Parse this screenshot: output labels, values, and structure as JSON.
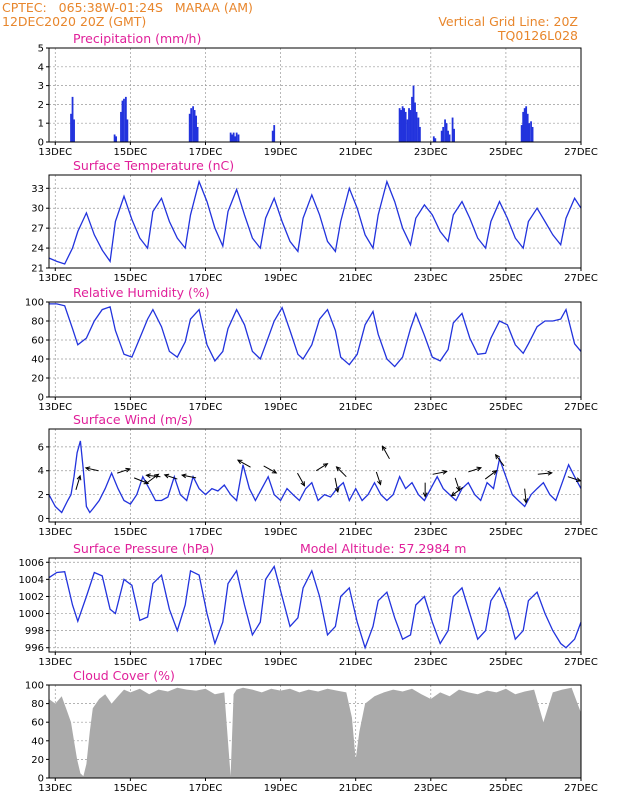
{
  "header": {
    "station": "CPTEC:   065:38W-01:24S   MARAA (AM)",
    "datetime": "12DEC2020 20Z (GMT)",
    "grid_note": "Vertical Grid Line: 20Z",
    "model": "TQ0126L028"
  },
  "colors": {
    "header": "#e8862c",
    "title": "#e0209a",
    "line": "#2233dd",
    "bar": "#2233dd",
    "cloud": "#aaaaaa",
    "arrow": "#000000"
  },
  "x_ticks": [
    "13DEC",
    "15DEC",
    "17DEC",
    "19DEC",
    "21DEC",
    "23DEC",
    "25DEC",
    "27DEC"
  ],
  "chart_data": [
    {
      "type": "bar",
      "title": "Precipitation (mm/h)",
      "xlim": [
        12.833,
        27.0
      ],
      "ylim": [
        0,
        5
      ],
      "yticks": [
        0,
        1,
        2,
        3,
        4,
        5
      ],
      "x": [
        13.42,
        13.46,
        13.5,
        14.58,
        14.62,
        14.75,
        14.79,
        14.83,
        14.88,
        14.92,
        16.58,
        16.62,
        16.67,
        16.71,
        16.75,
        16.79,
        17.67,
        17.71,
        17.75,
        17.79,
        17.83,
        17.88,
        18.79,
        18.83,
        22.17,
        22.21,
        22.25,
        22.29,
        22.33,
        22.38,
        22.42,
        22.46,
        22.5,
        22.54,
        22.58,
        22.62,
        22.67,
        22.71,
        23.08,
        23.12,
        23.29,
        23.33,
        23.38,
        23.42,
        23.46,
        23.5,
        23.58,
        23.62,
        25.42,
        25.46,
        25.5,
        25.54,
        25.58,
        25.62,
        25.67,
        25.71
      ],
      "values": [
        1.5,
        2.4,
        1.2,
        0.4,
        0.3,
        1.6,
        2.2,
        2.3,
        2.4,
        1.2,
        1.5,
        1.8,
        1.9,
        1.7,
        1.4,
        0.8,
        0.5,
        0.4,
        0.5,
        0.3,
        0.5,
        0.4,
        0.6,
        0.9,
        1.8,
        1.7,
        1.9,
        1.8,
        1.6,
        1.2,
        1.8,
        1.7,
        2.4,
        3.0,
        2.1,
        1.6,
        1.3,
        0.8,
        0.3,
        0.2,
        0.6,
        0.8,
        1.2,
        1.0,
        0.6,
        0.4,
        1.3,
        0.7,
        0.9,
        1.6,
        1.8,
        1.9,
        1.5,
        1.0,
        1.1,
        0.8
      ]
    },
    {
      "type": "line",
      "title": "Surface Temperature (nC)",
      "xlim": [
        12.833,
        27.0
      ],
      "ylim": [
        21,
        35
      ],
      "yticks": [
        21,
        24,
        27,
        30,
        33
      ],
      "x": [
        12.83,
        13.04,
        13.25,
        13.46,
        13.6,
        13.83,
        14.04,
        14.25,
        14.46,
        14.6,
        14.83,
        15.04,
        15.25,
        15.46,
        15.6,
        15.83,
        16.04,
        16.25,
        16.46,
        16.6,
        16.83,
        17.04,
        17.25,
        17.46,
        17.6,
        17.83,
        18.04,
        18.25,
        18.46,
        18.6,
        18.83,
        19.04,
        19.25,
        19.46,
        19.6,
        19.83,
        20.04,
        20.25,
        20.46,
        20.6,
        20.83,
        21.04,
        21.25,
        21.46,
        21.6,
        21.83,
        22.04,
        22.25,
        22.46,
        22.6,
        22.83,
        23.04,
        23.25,
        23.46,
        23.6,
        23.83,
        24.04,
        24.25,
        24.46,
        24.6,
        24.83,
        25.04,
        25.25,
        25.46,
        25.6,
        25.83,
        26.04,
        26.25,
        26.46,
        26.6,
        26.83,
        27.0
      ],
      "values": [
        22.5,
        22.0,
        21.6,
        24.0,
        26.5,
        29.3,
        26.0,
        23.7,
        22.0,
        28.0,
        31.8,
        28.3,
        25.5,
        24.0,
        29.5,
        31.5,
        28.0,
        25.5,
        24.0,
        29.0,
        34.0,
        31.0,
        27.0,
        24.3,
        29.5,
        32.8,
        29.0,
        25.5,
        24.0,
        28.5,
        31.5,
        28.0,
        25.0,
        23.5,
        28.5,
        32.0,
        29.0,
        25.0,
        23.5,
        28.0,
        33.0,
        30.0,
        26.0,
        24.0,
        29.0,
        34.0,
        31.0,
        27.0,
        24.5,
        28.5,
        30.5,
        29.0,
        26.5,
        25.0,
        29.0,
        31.0,
        28.5,
        25.5,
        24.0,
        28.0,
        31.0,
        28.5,
        25.5,
        24.0,
        28.0,
        30.0,
        28.0,
        26.0,
        24.5,
        28.5,
        31.5,
        30.0
      ]
    },
    {
      "type": "line",
      "title": "Relative Humidity (%)",
      "xlim": [
        12.833,
        27.0
      ],
      "ylim": [
        0,
        100
      ],
      "yticks": [
        0,
        20,
        40,
        60,
        80,
        100
      ],
      "x": [
        12.83,
        13.04,
        13.25,
        13.46,
        13.6,
        13.83,
        14.04,
        14.25,
        14.46,
        14.6,
        14.83,
        15.04,
        15.25,
        15.46,
        15.6,
        15.83,
        16.04,
        16.25,
        16.46,
        16.6,
        16.83,
        17.04,
        17.25,
        17.46,
        17.6,
        17.83,
        18.04,
        18.25,
        18.46,
        18.6,
        18.83,
        19.04,
        19.25,
        19.46,
        19.6,
        19.83,
        20.04,
        20.25,
        20.46,
        20.6,
        20.83,
        21.04,
        21.25,
        21.46,
        21.6,
        21.83,
        22.04,
        22.25,
        22.46,
        22.6,
        22.83,
        23.04,
        23.25,
        23.46,
        23.6,
        23.83,
        24.04,
        24.25,
        24.46,
        24.6,
        24.83,
        25.04,
        25.25,
        25.46,
        25.6,
        25.83,
        26.04,
        26.25,
        26.46,
        26.6,
        26.83,
        27.0
      ],
      "values": [
        98,
        98,
        96,
        72,
        55,
        62,
        80,
        92,
        95,
        70,
        45,
        42,
        62,
        82,
        92,
        74,
        48,
        42,
        58,
        82,
        92,
        55,
        38,
        48,
        72,
        92,
        76,
        48,
        40,
        55,
        80,
        94,
        70,
        45,
        40,
        55,
        82,
        92,
        70,
        42,
        34,
        45,
        76,
        90,
        66,
        40,
        32,
        42,
        72,
        88,
        65,
        42,
        38,
        50,
        78,
        88,
        62,
        45,
        46,
        62,
        80,
        76,
        55,
        46,
        56,
        74,
        80,
        80,
        82,
        92,
        56,
        48
      ]
    },
    {
      "type": "line",
      "title": "Surface Wind (m/s)",
      "xlim": [
        12.833,
        27.0
      ],
      "ylim": [
        -0.3,
        7.5
      ],
      "yticks": [
        0,
        2,
        4,
        6
      ],
      "x": [
        12.83,
        13.0,
        13.17,
        13.33,
        13.42,
        13.5,
        13.58,
        13.67,
        13.75,
        13.83,
        13.92,
        14.0,
        14.17,
        14.33,
        14.5,
        14.67,
        14.83,
        15.0,
        15.17,
        15.33,
        15.5,
        15.67,
        15.83,
        16.0,
        16.17,
        16.33,
        16.5,
        16.67,
        16.83,
        17.0,
        17.17,
        17.33,
        17.5,
        17.67,
        17.83,
        18.0,
        18.17,
        18.33,
        18.5,
        18.67,
        18.83,
        19.0,
        19.17,
        19.33,
        19.5,
        19.67,
        19.83,
        20.0,
        20.17,
        20.33,
        20.5,
        20.67,
        20.83,
        21.0,
        21.17,
        21.33,
        21.5,
        21.67,
        21.83,
        22.0,
        22.17,
        22.33,
        22.5,
        22.67,
        22.83,
        23.0,
        23.17,
        23.33,
        23.5,
        23.67,
        23.83,
        24.0,
        24.17,
        24.33,
        24.5,
        24.67,
        24.83,
        25.0,
        25.17,
        25.33,
        25.5,
        25.67,
        25.83,
        26.0,
        26.17,
        26.33,
        26.5,
        26.67,
        26.83,
        27.0
      ],
      "values": [
        2.0,
        1.0,
        0.5,
        1.5,
        2.0,
        3.5,
        5.5,
        6.5,
        4.0,
        1.0,
        0.5,
        0.8,
        1.5,
        2.5,
        3.8,
        2.5,
        1.5,
        1.2,
        2.0,
        3.5,
        2.5,
        1.5,
        1.5,
        1.8,
        3.5,
        2.0,
        1.5,
        3.5,
        2.5,
        2.0,
        2.5,
        2.3,
        2.8,
        2.0,
        1.5,
        4.5,
        2.5,
        1.5,
        2.5,
        3.5,
        2.0,
        1.5,
        2.5,
        2.0,
        1.5,
        2.5,
        3.0,
        1.5,
        2.0,
        1.8,
        2.5,
        3.0,
        1.5,
        2.5,
        1.5,
        2.0,
        3.0,
        2.0,
        1.5,
        2.0,
        3.5,
        2.5,
        3.0,
        2.0,
        1.5,
        2.5,
        3.5,
        2.5,
        2.0,
        1.5,
        2.5,
        3.0,
        2.0,
        1.5,
        3.0,
        2.5,
        5.0,
        3.5,
        2.0,
        1.5,
        1.0,
        2.0,
        2.5,
        3.0,
        2.0,
        1.5,
        3.0,
        4.5,
        3.5,
        2.5
      ],
      "arrows": [
        {
          "x": 13.55,
          "v": 2.4,
          "u_dir": 0.3,
          "v_dir": 1.0
        },
        {
          "x": 14.15,
          "v": 4.0,
          "u_dir": -0.9,
          "v_dir": 0.2
        },
        {
          "x": 14.65,
          "v": 3.8,
          "u_dir": 0.9,
          "v_dir": 0.3
        },
        {
          "x": 15.1,
          "v": 3.4,
          "u_dir": 1.0,
          "v_dir": -0.4
        },
        {
          "x": 15.45,
          "v": 3.0,
          "u_dir": 0.8,
          "v_dir": 0.6
        },
        {
          "x": 15.8,
          "v": 3.5,
          "u_dir": -1.0,
          "v_dir": 0.1
        },
        {
          "x": 16.25,
          "v": 3.3,
          "u_dir": -0.9,
          "v_dir": 0.3
        },
        {
          "x": 16.75,
          "v": 3.4,
          "u_dir": -1.0,
          "v_dir": 0.2
        },
        {
          "x": 18.2,
          "v": 4.3,
          "u_dir": -0.9,
          "v_dir": 0.5
        },
        {
          "x": 18.55,
          "v": 4.4,
          "u_dir": 0.9,
          "v_dir": -0.5
        },
        {
          "x": 19.45,
          "v": 3.8,
          "u_dir": 0.5,
          "v_dir": -0.9
        },
        {
          "x": 19.95,
          "v": 4.0,
          "u_dir": 0.8,
          "v_dir": 0.5
        },
        {
          "x": 20.45,
          "v": 3.4,
          "u_dir": 0.2,
          "v_dir": -1.0
        },
        {
          "x": 20.75,
          "v": 3.5,
          "u_dir": -0.7,
          "v_dir": 0.7
        },
        {
          "x": 21.55,
          "v": 3.9,
          "u_dir": 0.3,
          "v_dir": -0.9
        },
        {
          "x": 21.9,
          "v": 5.0,
          "u_dir": -0.5,
          "v_dir": 0.9
        },
        {
          "x": 22.85,
          "v": 3.0,
          "u_dir": 0.0,
          "v_dir": -1.0
        },
        {
          "x": 23.05,
          "v": 3.7,
          "u_dir": 1.0,
          "v_dir": 0.2
        },
        {
          "x": 23.65,
          "v": 3.4,
          "u_dir": 0.3,
          "v_dir": -0.9
        },
        {
          "x": 23.85,
          "v": 2.6,
          "u_dir": -0.8,
          "v_dir": -0.6
        },
        {
          "x": 24.0,
          "v": 3.9,
          "u_dir": 0.9,
          "v_dir": 0.3
        },
        {
          "x": 24.45,
          "v": 3.3,
          "u_dir": 0.8,
          "v_dir": 0.6
        },
        {
          "x": 24.95,
          "v": 4.4,
          "u_dir": -0.6,
          "v_dir": 0.8
        },
        {
          "x": 25.5,
          "v": 2.5,
          "u_dir": 0.1,
          "v_dir": -1.0
        },
        {
          "x": 25.85,
          "v": 3.7,
          "u_dir": 1.0,
          "v_dir": 0.1
        },
        {
          "x": 26.65,
          "v": 3.5,
          "u_dir": 0.9,
          "v_dir": -0.3
        }
      ]
    },
    {
      "type": "line",
      "title": "Surface Pressure (hPa)",
      "subtitle": "Model Altitude: 57.2984 m",
      "xlim": [
        12.833,
        27.0
      ],
      "ylim": [
        995.5,
        1006.5
      ],
      "yticks": [
        996,
        998,
        1000,
        1002,
        1004,
        1006
      ],
      "x": [
        12.83,
        13.04,
        13.25,
        13.46,
        13.6,
        13.83,
        14.04,
        14.25,
        14.46,
        14.6,
        14.83,
        15.04,
        15.25,
        15.46,
        15.6,
        15.83,
        16.04,
        16.25,
        16.46,
        16.6,
        16.83,
        17.04,
        17.25,
        17.46,
        17.6,
        17.83,
        18.04,
        18.25,
        18.46,
        18.6,
        18.83,
        19.04,
        19.25,
        19.46,
        19.6,
        19.83,
        20.04,
        20.25,
        20.46,
        20.6,
        20.83,
        21.04,
        21.25,
        21.46,
        21.6,
        21.83,
        22.04,
        22.25,
        22.46,
        22.6,
        22.83,
        23.04,
        23.25,
        23.46,
        23.6,
        23.83,
        24.04,
        24.25,
        24.46,
        24.6,
        24.83,
        25.04,
        25.25,
        25.46,
        25.6,
        25.83,
        26.04,
        26.25,
        26.46,
        26.6,
        26.83,
        27.0
      ],
      "values": [
        1004.2,
        1004.8,
        1004.9,
        1001.0,
        999.1,
        1002.0,
        1004.8,
        1004.4,
        1000.5,
        1000.0,
        1004.0,
        1003.3,
        999.2,
        999.6,
        1003.5,
        1004.5,
        1000.5,
        998.0,
        1001.0,
        1005.0,
        1004.5,
        1000.0,
        996.5,
        999.0,
        1003.5,
        1005.0,
        1001.0,
        997.5,
        999.0,
        1004.0,
        1005.5,
        1002.0,
        998.5,
        999.5,
        1003.0,
        1005.0,
        1002.0,
        997.5,
        998.5,
        1002.0,
        1003.0,
        999.0,
        996.0,
        998.5,
        1001.5,
        1002.5,
        999.5,
        997.0,
        997.5,
        1001.0,
        1002.0,
        999.0,
        996.5,
        998.0,
        1002.0,
        1003.0,
        1000.0,
        997.0,
        998.0,
        1001.5,
        1003.0,
        1000.5,
        997.0,
        998.0,
        1001.5,
        1002.5,
        1000.0,
        998.0,
        996.5,
        996.0,
        997.0,
        999.0
      ]
    },
    {
      "type": "area",
      "title": "Cloud Cover (%)",
      "xlim": [
        12.833,
        27.0
      ],
      "ylim": [
        0,
        100
      ],
      "yticks": [
        0,
        20,
        40,
        60,
        80,
        100
      ],
      "x": [
        12.83,
        13.0,
        13.17,
        13.33,
        13.42,
        13.5,
        13.58,
        13.67,
        13.75,
        13.83,
        13.92,
        14.0,
        14.17,
        14.33,
        14.5,
        14.67,
        14.83,
        15.0,
        15.25,
        15.5,
        15.75,
        16.0,
        16.25,
        16.5,
        16.75,
        17.0,
        17.25,
        17.5,
        17.67,
        17.75,
        17.83,
        18.0,
        18.25,
        18.5,
        18.75,
        19.0,
        19.25,
        19.5,
        19.75,
        20.0,
        20.25,
        20.5,
        20.75,
        20.9,
        21.0,
        21.1,
        21.25,
        21.5,
        21.75,
        22.0,
        22.25,
        22.5,
        22.75,
        23.0,
        23.25,
        23.5,
        23.75,
        24.0,
        24.25,
        24.5,
        24.75,
        25.0,
        25.25,
        25.5,
        25.75,
        26.0,
        26.25,
        26.5,
        26.75,
        27.0
      ],
      "values": [
        85,
        80,
        88,
        70,
        60,
        40,
        20,
        5,
        2,
        15,
        50,
        75,
        85,
        90,
        80,
        88,
        95,
        92,
        96,
        90,
        95,
        93,
        97,
        95,
        94,
        96,
        90,
        92,
        2,
        90,
        95,
        97,
        95,
        92,
        96,
        94,
        96,
        92,
        95,
        93,
        96,
        94,
        92,
        65,
        20,
        50,
        80,
        88,
        92,
        95,
        93,
        96,
        90,
        85,
        92,
        88,
        95,
        92,
        90,
        94,
        92,
        96,
        90,
        93,
        95,
        60,
        92,
        95,
        97,
        70
      ]
    }
  ]
}
